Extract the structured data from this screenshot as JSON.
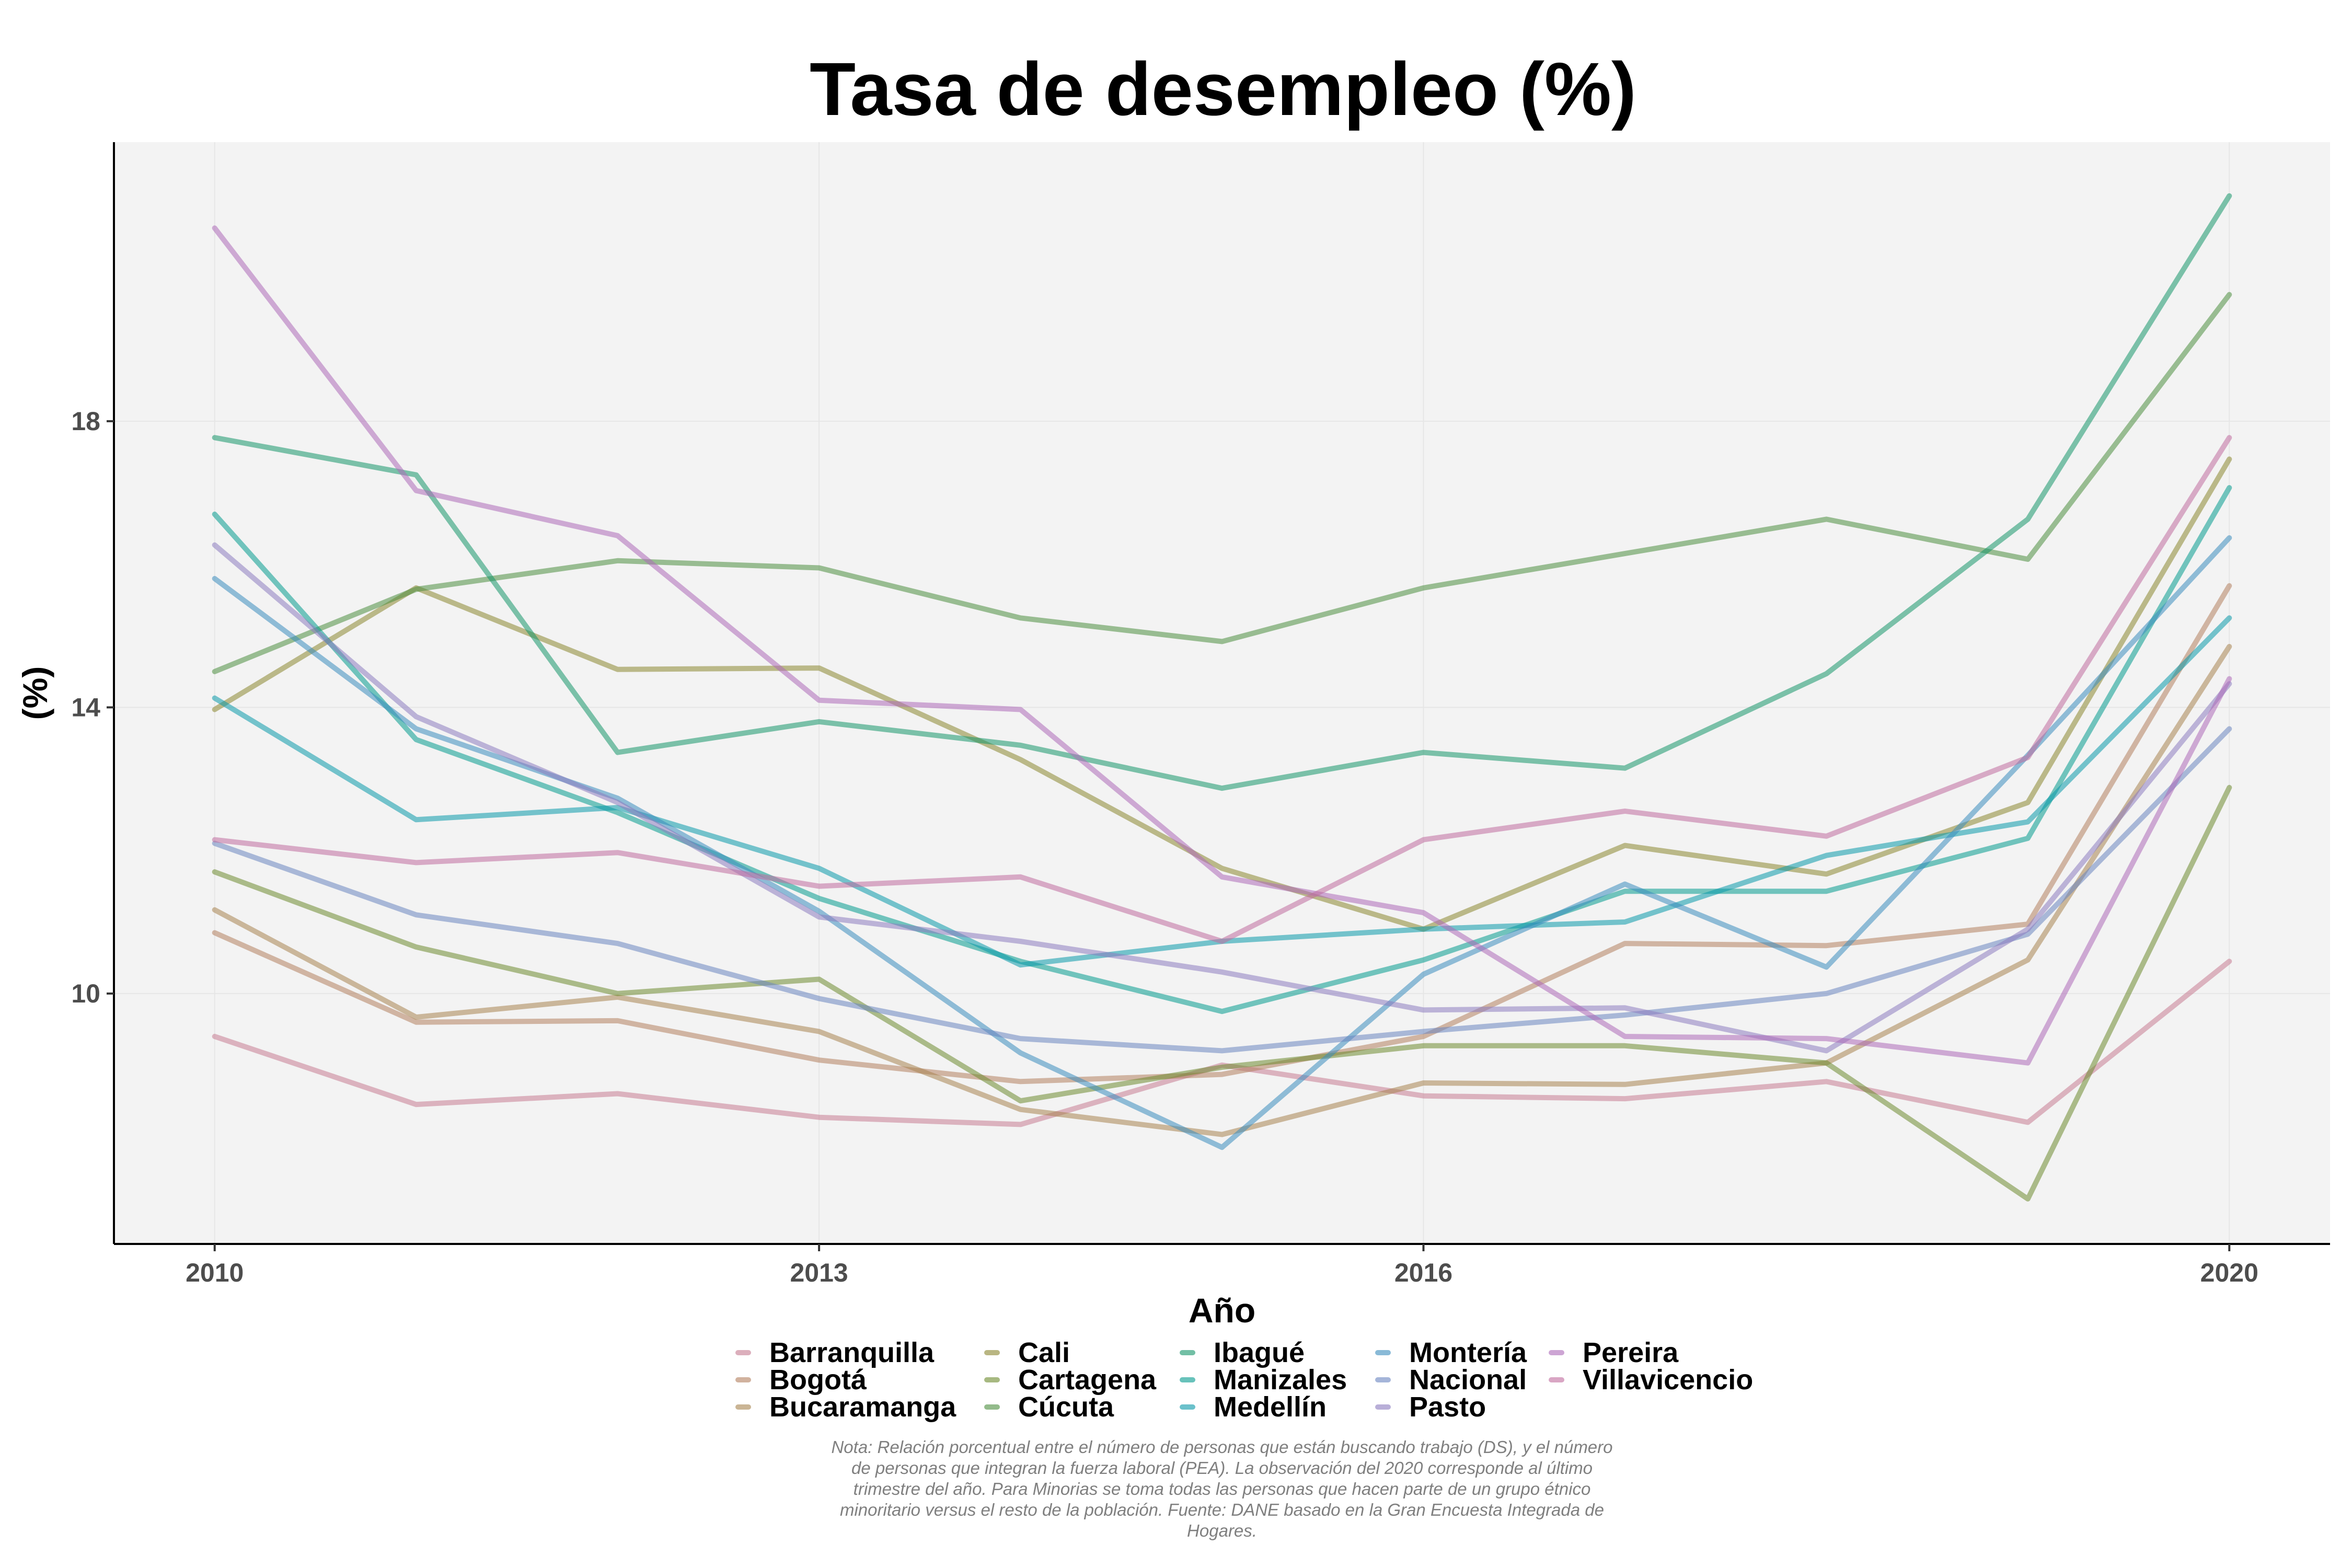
{
  "chart_data": {
    "type": "line",
    "title": "Tasa de desempleo (%)",
    "xlabel": "Año",
    "ylabel": "(%)",
    "x": [
      2010,
      2011,
      2012,
      2013,
      2014,
      2015,
      2016,
      2017,
      2018,
      2019,
      2020
    ],
    "x_ticks": [
      "2010",
      "2013",
      "2016",
      "2020"
    ],
    "y_ticks": [
      "10",
      "14",
      "18"
    ],
    "ylim": [
      6.5,
      21.9
    ],
    "xlim": [
      2009.5,
      2020.5
    ],
    "grid": true,
    "legend_position": "bottom",
    "series": [
      {
        "name": "Barranquilla",
        "color": "#C67B91",
        "values": [
          9.4,
          8.45,
          8.6,
          8.27,
          8.17,
          9.0,
          8.57,
          8.53,
          8.77,
          8.2,
          10.45
        ]
      },
      {
        "name": "Bogotá",
        "color": "#B3805F",
        "values": [
          10.85,
          9.6,
          9.62,
          9.07,
          8.77,
          8.87,
          9.4,
          10.7,
          10.67,
          10.97,
          15.7
        ]
      },
      {
        "name": "Bucaramanga",
        "color": "#A88450",
        "values": [
          11.17,
          9.67,
          9.95,
          9.47,
          8.38,
          8.03,
          8.75,
          8.73,
          9.03,
          10.47,
          14.85
        ]
      },
      {
        "name": "Cali",
        "color": "#8B8630",
        "values": [
          13.97,
          15.67,
          14.53,
          14.55,
          13.27,
          11.75,
          10.9,
          12.07,
          11.67,
          12.67,
          17.47
        ]
      },
      {
        "name": "Cartagena",
        "color": "#6E8B2F",
        "values": [
          11.7,
          10.65,
          10.0,
          10.2,
          8.5,
          8.97,
          9.27,
          9.27,
          9.03,
          7.13,
          12.88
        ]
      },
      {
        "name": "Cúcuta",
        "color": "#4C8E3F",
        "values": [
          14.5,
          15.65,
          16.05,
          15.95,
          15.25,
          14.92,
          15.67,
          16.15,
          16.63,
          16.07,
          19.77
        ]
      },
      {
        "name": "Ibagué",
        "color": "#16956A",
        "values": [
          17.77,
          17.25,
          13.37,
          13.8,
          13.47,
          12.87,
          13.37,
          13.15,
          14.47,
          16.63,
          21.15
        ]
      },
      {
        "name": "Manizales",
        "color": "#049B8E",
        "values": [
          16.7,
          13.55,
          12.53,
          11.33,
          10.45,
          9.75,
          10.47,
          11.43,
          11.43,
          12.17,
          17.07
        ]
      },
      {
        "name": "Medellín",
        "color": "#0A99A9",
        "values": [
          14.13,
          12.43,
          12.6,
          11.75,
          10.4,
          10.73,
          10.9,
          11.0,
          11.93,
          12.4,
          15.25
        ]
      },
      {
        "name": "Montería",
        "color": "#3B8DBE",
        "values": [
          15.8,
          13.7,
          12.73,
          11.15,
          9.17,
          7.85,
          10.27,
          11.53,
          10.37,
          13.33,
          16.37
        ]
      },
      {
        "name": "Nacional",
        "color": "#6A85C0",
        "values": [
          12.1,
          11.1,
          10.7,
          9.93,
          9.37,
          9.2,
          9.47,
          9.7,
          10.0,
          10.83,
          13.7
        ]
      },
      {
        "name": "Pasto",
        "color": "#8C7BBF",
        "values": [
          16.27,
          13.87,
          12.67,
          11.07,
          10.73,
          10.3,
          9.77,
          9.8,
          9.2,
          10.9,
          14.33
        ]
      },
      {
        "name": "Pereira",
        "color": "#AD6AB8",
        "values": [
          20.7,
          17.03,
          16.4,
          14.1,
          13.97,
          11.63,
          11.13,
          9.4,
          9.37,
          9.03,
          14.4
        ]
      },
      {
        "name": "Villavicencio",
        "color": "#C06C9E",
        "values": [
          12.15,
          11.83,
          11.97,
          11.5,
          11.63,
          10.73,
          12.15,
          12.55,
          12.2,
          13.3,
          17.77
        ]
      }
    ],
    "note": [
      "Nota: Relación porcentual entre el número de personas que están buscando trabajo (DS), y el número",
      "de personas que integran la fuerza laboral (PEA). La observación del 2020 corresponde al último",
      "trimestre del año. Para Minorias se toma todas las personas que hacen parte de un grupo étnico",
      "minoritario versus el resto de la población. Fuente: DANE basado en la Gran Encuesta Integrada de",
      "Hogares."
    ]
  }
}
